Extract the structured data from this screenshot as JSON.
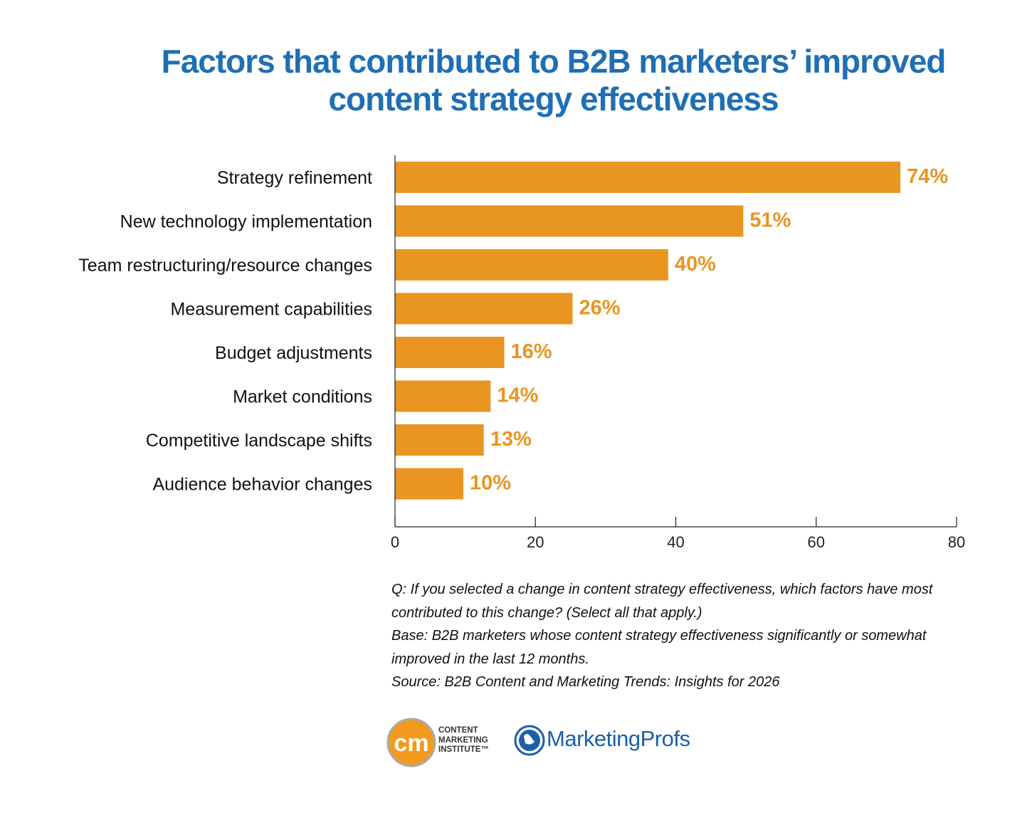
{
  "chart_data": {
    "type": "bar",
    "orientation": "horizontal",
    "title": "Factors that contributed to B2B marketers’ improved content strategy effectiveness",
    "categories": [
      "Strategy refinement",
      "New technology implementation",
      "Team restructuring/resource changes",
      "Measurement capabilities",
      "Budget adjustments",
      "Market conditions",
      "Competitive landscape shifts",
      "Audience behavior changes"
    ],
    "values": [
      74,
      51,
      40,
      26,
      16,
      14,
      13,
      10
    ],
    "data_labels": [
      "74%",
      "51%",
      "40%",
      "26%",
      "16%",
      "14%",
      "13%",
      "10%"
    ],
    "xlim": [
      0,
      80
    ],
    "xticks": [
      "0",
      "20",
      "40",
      "60",
      "80"
    ],
    "grid": false,
    "colors": {
      "bar": "#e99521",
      "label": "#e99521",
      "title": "#1f6fb4"
    }
  },
  "notes": [
    "Q: If you selected a change in content strategy effectiveness, which factors have most contributed to this change? (Select all that apply.)",
    "Base: B2B marketers whose content strategy effectiveness significantly or somewhat improved in the last 12 months.",
    "Source: B2B Content and Marketing Trends: Insights for 2026"
  ],
  "logos": {
    "cmi": "CONTENT MARKETING INSTITUTE™",
    "cmi_mark": "cm",
    "mp": "MarketingProfs"
  }
}
